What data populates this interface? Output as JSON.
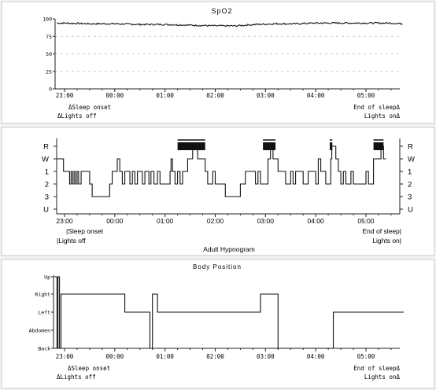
{
  "chart_data": [
    {
      "type": "line",
      "title": "SpO2",
      "xlabel": "",
      "ylabel": "",
      "ylim": [
        0,
        100
      ],
      "y_ticks": [
        0,
        25,
        50,
        75,
        100
      ],
      "y_tick_labels": [
        "0",
        "25",
        "50",
        "75",
        "100"
      ],
      "grid": true,
      "x_tick_labels": [
        "23:00",
        "00:00",
        "01:00",
        "02:00",
        "03:00",
        "04:00",
        "05:00"
      ],
      "series": [
        {
          "x": [
            22.85,
            23.0,
            23.5,
            0.0,
            0.5,
            1.0,
            1.5,
            2.0,
            2.4,
            2.8,
            3.2,
            3.6,
            4.0,
            4.5,
            5.0,
            5.5,
            5.75
          ],
          "y": [
            94,
            94,
            93,
            93,
            92,
            92,
            91,
            90,
            90,
            92,
            93,
            93,
            94,
            94,
            94,
            94,
            93
          ]
        }
      ],
      "annotations": {
        "sleep_onset": "Sleep onset",
        "lights_off": "Lights off",
        "end_of_sleep": "End of sleep",
        "lights_on": "Lights on"
      }
    },
    {
      "type": "line",
      "title": "Adult Hypnogram",
      "xlabel": "",
      "ylabel": "",
      "stages": [
        "R",
        "W",
        "1",
        "2",
        "3",
        "U"
      ],
      "grid": false,
      "x_tick_labels": [
        "23:00",
        "00:00",
        "01:00",
        "02:00",
        "03:00",
        "04:00",
        "05:00"
      ],
      "series": [
        {
          "x": [
            22.85,
            22.98,
            23.1,
            23.13,
            23.16,
            23.19,
            23.22,
            23.25,
            23.28,
            23.33,
            23.5,
            23.55,
            23.75,
            23.9,
            23.95,
            0.05,
            0.1,
            0.15,
            0.2,
            0.3,
            0.35,
            0.4,
            0.45,
            0.55,
            0.6,
            0.68,
            0.72,
            0.78,
            0.85,
            0.9,
            1.1,
            1.12,
            1.15,
            1.2,
            1.25,
            1.3,
            1.35,
            1.45,
            1.55,
            1.65,
            1.8,
            1.85,
            1.95,
            2.0,
            2.2,
            2.4,
            2.5,
            2.6,
            2.8,
            2.85,
            2.9,
            3.05,
            3.1,
            3.15,
            3.25,
            3.4,
            3.5,
            3.55,
            3.6,
            3.75,
            3.85,
            4.0,
            4.05,
            4.1,
            4.2,
            4.3,
            4.32,
            4.4,
            4.45,
            4.5,
            4.55,
            4.6,
            4.7,
            4.75,
            5.0,
            5.05,
            5.15,
            5.3,
            5.35
          ],
          "y": [
            "W",
            "1",
            "2",
            "1",
            "2",
            "1",
            "2",
            "1",
            "2",
            "1",
            "2",
            "3",
            "3",
            "2",
            "1",
            "W",
            "1",
            "2",
            "1",
            "2",
            "1",
            "2",
            "1",
            "2",
            "1",
            "2",
            "1",
            "2",
            "1",
            "2",
            "1",
            "W",
            "1",
            "2",
            "1",
            "2",
            "1",
            "W",
            "R",
            "W",
            "1",
            "2",
            "1",
            "2",
            "3",
            "3",
            "2",
            "1",
            "2",
            "1",
            "2",
            "W",
            "R",
            "W",
            "1",
            "2",
            "1",
            "2",
            "1",
            "2",
            "1",
            "2",
            "W",
            "1",
            "2",
            "W",
            "R",
            "W",
            "1",
            "2",
            "1",
            "2",
            "1",
            "2",
            "1",
            "2",
            "W",
            "R",
            "W"
          ]
        }
      ],
      "rem_bars": [
        {
          "start": 1.25,
          "end": 1.8
        },
        {
          "start": 2.95,
          "end": 3.2
        },
        {
          "start": 4.28,
          "end": 4.33
        },
        {
          "start": 5.15,
          "end": 5.35
        }
      ],
      "annotations": {
        "sleep_onset": "Sleep onset",
        "lights_off": "Lights off",
        "end_of_sleep": "End of sleep",
        "lights_on": "Lights on"
      }
    },
    {
      "type": "line",
      "title": "Body Position",
      "xlabel": "",
      "ylabel": "",
      "positions": [
        "Up",
        "Right",
        "Left",
        "Abdomen",
        "Back"
      ],
      "grid": false,
      "x_tick_labels": [
        "23:00",
        "00:00",
        "01:00",
        "02:00",
        "03:00",
        "04:00",
        "05:00"
      ],
      "series": [
        {
          "x": [
            22.8,
            22.85,
            22.87,
            22.9,
            22.93,
            23.0,
            23.5,
            0.2,
            0.4,
            0.7,
            0.75,
            0.8,
            0.85,
            1.0,
            1.5,
            2.0,
            2.5,
            2.9,
            3.25,
            3.5,
            4.0,
            4.35,
            4.5,
            5.0,
            5.75
          ],
          "y": [
            "Up",
            "Back",
            "Up",
            "Back",
            "Right",
            "Right",
            "Right",
            "Left",
            "Left",
            "Back",
            "Right",
            "Right",
            "Left",
            "Left",
            "Left",
            "Left",
            "Left",
            "Right",
            "Back",
            "Back",
            "Back",
            "Left",
            "Left",
            "Left",
            "Left"
          ]
        }
      ],
      "annotations": {
        "sleep_onset": "Sleep onset",
        "lights_off": "Lights off",
        "end_of_sleep": "End of sleep",
        "lights_on": "Lights on"
      }
    }
  ]
}
